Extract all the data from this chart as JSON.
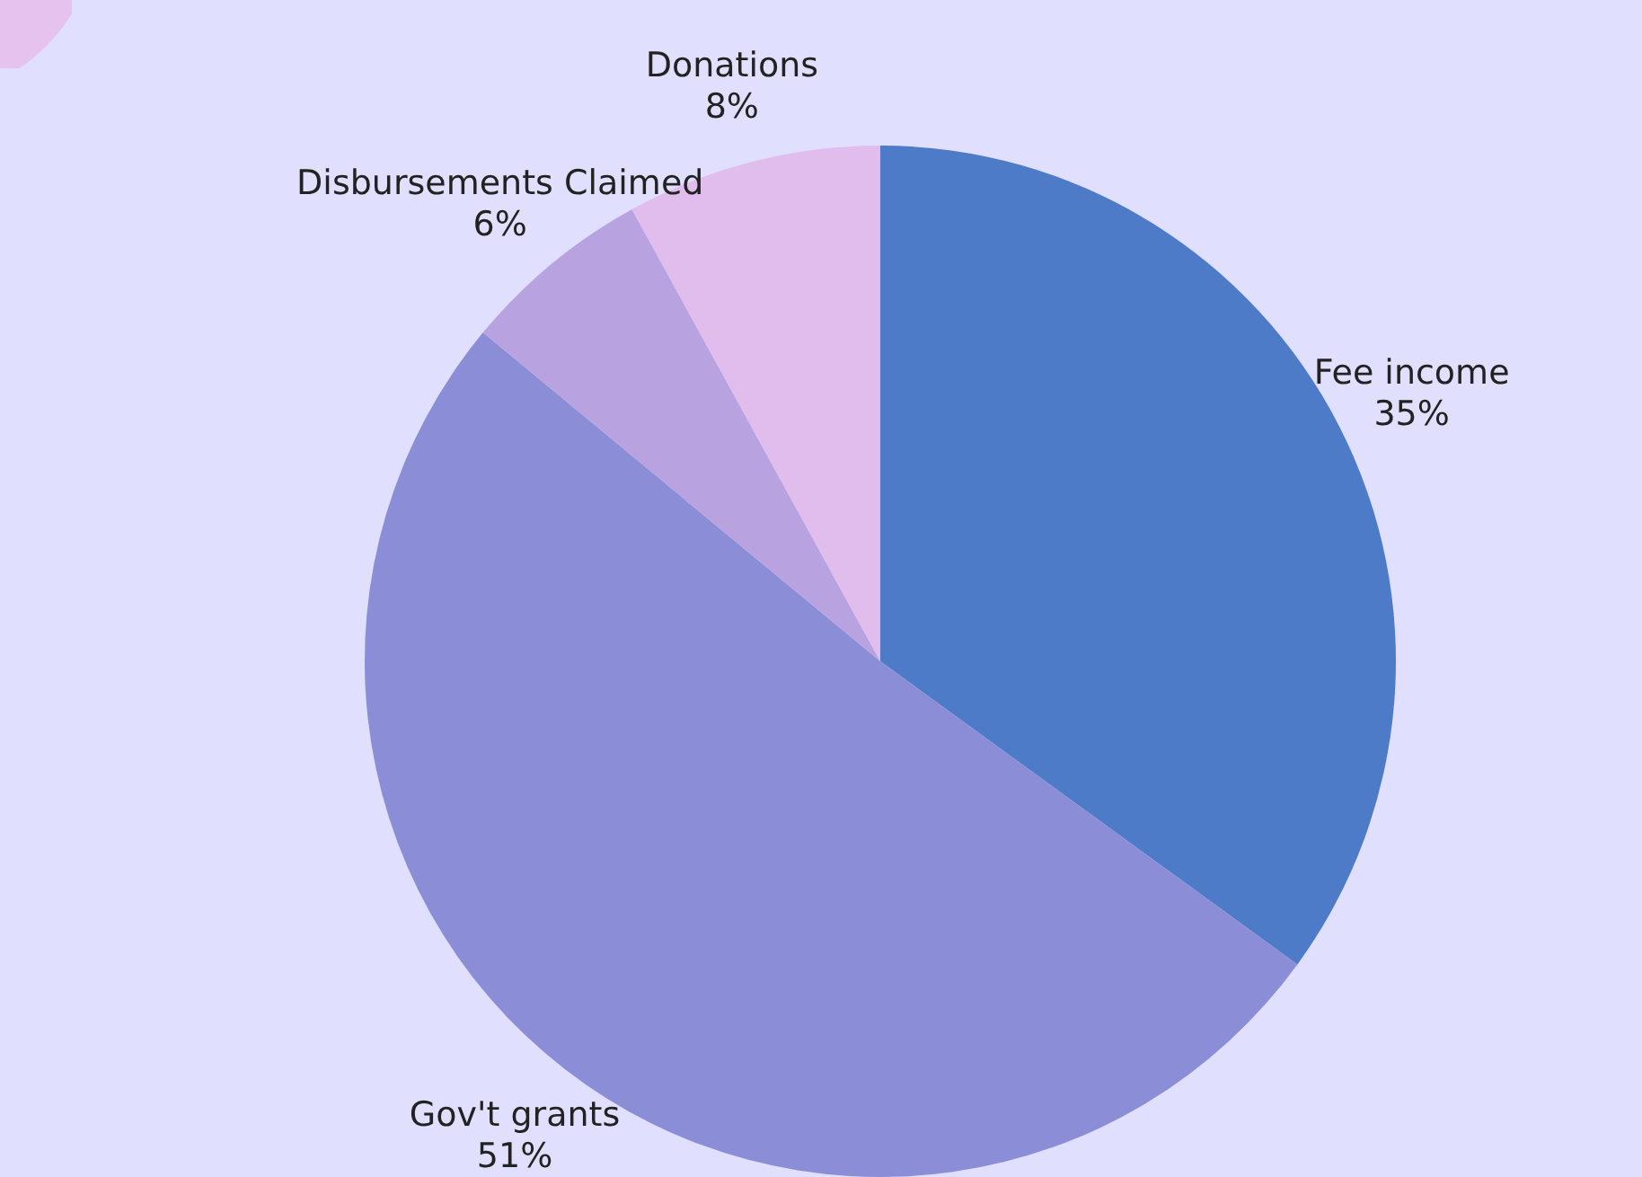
{
  "chart_data": {
    "type": "pie",
    "categories": [
      "Fee income",
      "Gov't grants",
      "Disbursements Claimed",
      "Donations"
    ],
    "values": [
      35,
      51,
      6,
      8
    ],
    "value_labels": [
      "35%",
      "51%",
      "6%",
      "8%"
    ],
    "colors": [
      "#4e7bc8",
      "#8b8dd7",
      "#b8a2e0",
      "#e1bdee"
    ],
    "legend": false
  }
}
